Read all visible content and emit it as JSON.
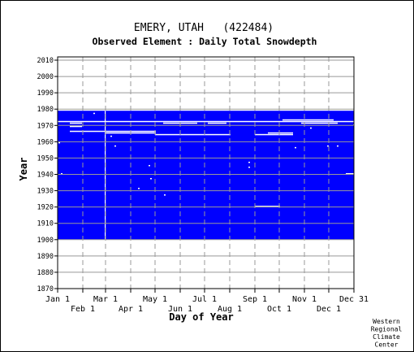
{
  "chart_data": {
    "type": "heatmap",
    "station_title": "EMERY, UTAH   (422484)",
    "subtitle": "Observed Element : Daily Total Snowdepth",
    "xlabel": "Day of Year",
    "ylabel": "Year",
    "xlim": [
      1,
      365
    ],
    "ylim": [
      1870,
      2012
    ],
    "x_ticks_top": [
      {
        "label": "Jan 1",
        "day": 1
      },
      {
        "label": "Mar 1",
        "day": 60
      },
      {
        "label": "May 1",
        "day": 121
      },
      {
        "label": "Jul 1",
        "day": 182
      },
      {
        "label": "Sep 1",
        "day": 244
      },
      {
        "label": "Nov 1",
        "day": 305
      },
      {
        "label": "Dec 31",
        "day": 365
      }
    ],
    "x_ticks_bottom": [
      {
        "label": "Feb 1",
        "day": 32
      },
      {
        "label": "Apr 1",
        "day": 91
      },
      {
        "label": "Jun 1",
        "day": 152
      },
      {
        "label": "Aug 1",
        "day": 213
      },
      {
        "label": "Oct 1",
        "day": 274
      },
      {
        "label": "Dec 1",
        "day": 335
      }
    ],
    "y_ticks": [
      "1870",
      "1880",
      "1890",
      "1900",
      "1910",
      "1920",
      "1930",
      "1940",
      "1950",
      "1960",
      "1970",
      "1980",
      "1990",
      "2000",
      "2010"
    ],
    "data_coverage": {
      "start_year": 1900,
      "end_year": 1978,
      "color": "#0000ff"
    },
    "missing_segments": [
      {
        "year": 1972,
        "start_day": 1,
        "end_day": 365
      },
      {
        "year": 1971,
        "start_day": 16,
        "end_day": 30
      },
      {
        "year": 1971,
        "start_day": 131,
        "end_day": 172
      },
      {
        "year": 1971,
        "start_day": 186,
        "end_day": 208
      },
      {
        "year": 1971,
        "start_day": 301,
        "end_day": 345
      },
      {
        "year": 1969,
        "start_day": 16,
        "end_day": 30
      },
      {
        "year": 1966,
        "start_day": 16,
        "end_day": 60
      },
      {
        "year": 1966,
        "start_day": 60,
        "end_day": 121
      },
      {
        "year": 1965,
        "start_day": 60,
        "end_day": 121
      },
      {
        "year": 1964,
        "start_day": 121,
        "end_day": 213
      },
      {
        "year": 1964,
        "start_day": 244,
        "end_day": 290
      },
      {
        "year": 1965,
        "start_day": 260,
        "end_day": 290
      },
      {
        "year": 1973,
        "start_day": 278,
        "end_day": 340
      },
      {
        "year": 1970,
        "start_day": 365,
        "end_day": 365
      },
      {
        "year": 1920,
        "start_day": 244,
        "end_day": 274
      },
      {
        "year": 1940,
        "start_day": 5,
        "end_day": 6
      },
      {
        "year": 1931,
        "start_day": 100,
        "end_day": 101
      },
      {
        "year": 1927,
        "start_day": 132,
        "end_day": 133
      },
      {
        "year": 1945,
        "start_day": 113,
        "end_day": 114
      },
      {
        "year": 1937,
        "start_day": 115,
        "end_day": 116
      },
      {
        "year": 1957,
        "start_day": 71,
        "end_day": 72
      },
      {
        "year": 1963,
        "start_day": 66,
        "end_day": 67
      },
      {
        "year": 1947,
        "start_day": 236,
        "end_day": 237
      },
      {
        "year": 1944,
        "start_day": 236,
        "end_day": 237
      },
      {
        "year": 1956,
        "start_day": 293,
        "end_day": 294
      },
      {
        "year": 1957,
        "start_day": 333,
        "end_day": 334
      },
      {
        "year": 1957,
        "start_day": 345,
        "end_day": 346
      },
      {
        "year": 1940,
        "start_day": 356,
        "end_day": 365
      },
      {
        "year": 1968,
        "start_day": 312,
        "end_day": 313
      },
      {
        "year": 1959,
        "start_day": 2,
        "end_day": 3
      },
      {
        "year": 1977,
        "start_day": 45,
        "end_day": 46
      }
    ],
    "missing_columns": [
      {
        "day": 59,
        "start_year": 1900,
        "end_year": 1978
      }
    ],
    "credit": "Western\nRegional\nClimate\nCenter"
  }
}
